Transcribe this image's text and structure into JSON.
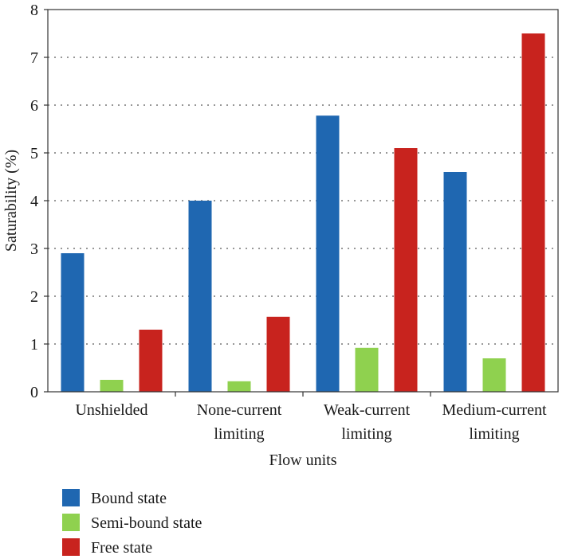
{
  "chart_data": {
    "type": "bar",
    "title": "",
    "xlabel": "Flow units",
    "ylabel": "Saturability (%)",
    "ylim": [
      0,
      8
    ],
    "yticks": [
      0,
      1,
      2,
      3,
      4,
      5,
      6,
      7,
      8
    ],
    "grid": "horizontal-dotted",
    "legend_position": "bottom-left",
    "categories": [
      [
        "Unshielded"
      ],
      [
        "None-current",
        "limiting"
      ],
      [
        "Weak-current",
        "limiting"
      ],
      [
        "Medium-current",
        "limiting"
      ]
    ],
    "series": [
      {
        "name": "Bound state",
        "color": "#1f67b1",
        "values": [
          2.9,
          4.0,
          5.78,
          4.6
        ]
      },
      {
        "name": "Semi-bound state",
        "color": "#8fd14f",
        "values": [
          0.25,
          0.22,
          0.92,
          0.7
        ]
      },
      {
        "name": "Free state",
        "color": "#c8231e",
        "values": [
          1.3,
          1.57,
          5.1,
          7.5
        ]
      }
    ]
  }
}
